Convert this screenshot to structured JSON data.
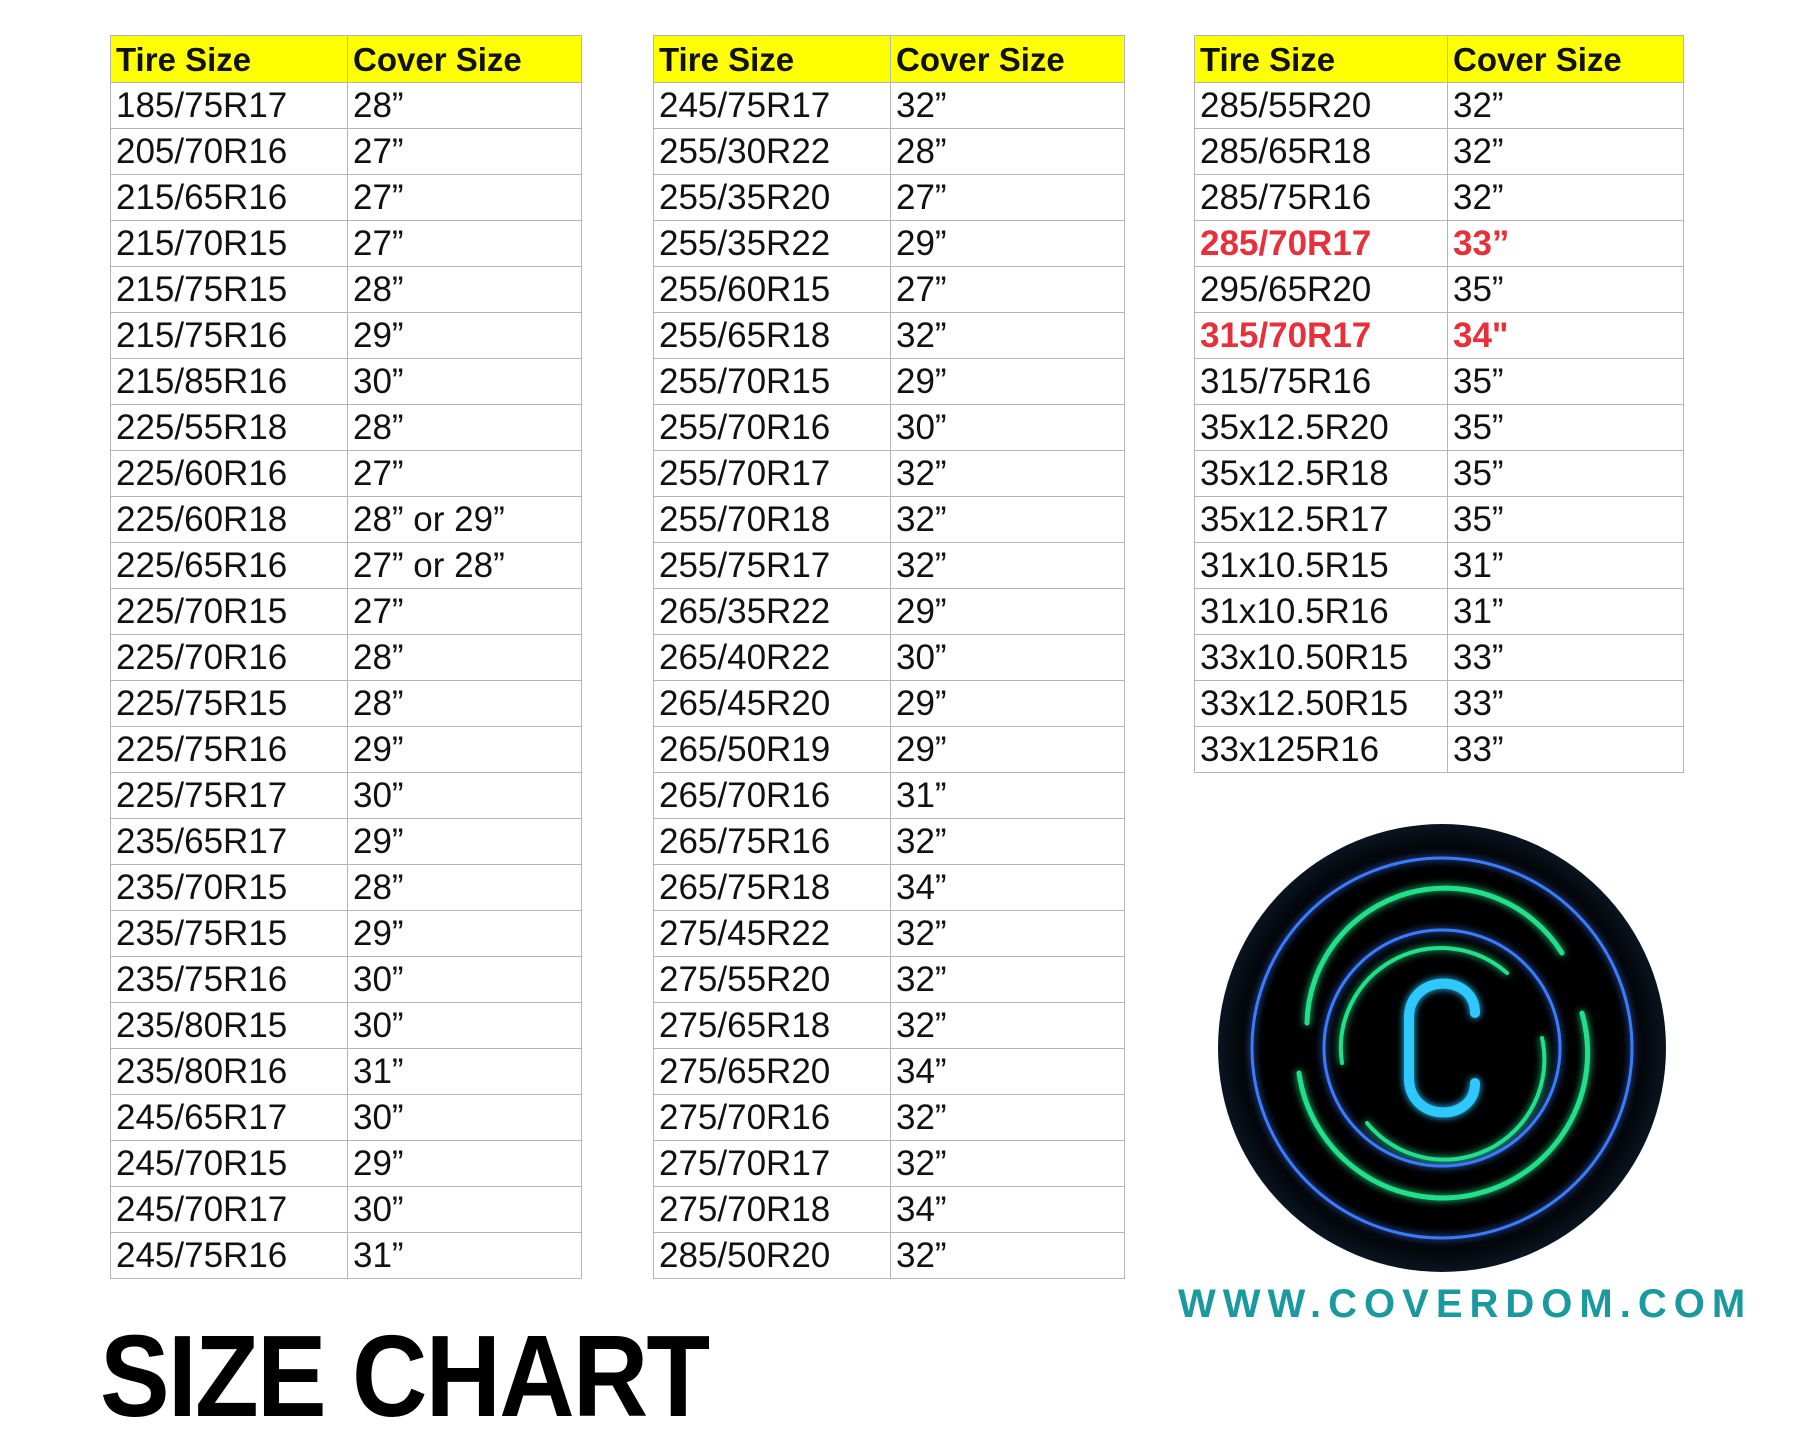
{
  "headers": {
    "tire": "Tire Size",
    "cover": "Cover Size"
  },
  "tables": [
    [
      [
        "185/75R17",
        "28”"
      ],
      [
        "205/70R16",
        "27”"
      ],
      [
        "215/65R16",
        "27”"
      ],
      [
        "215/70R15",
        "27”"
      ],
      [
        "215/75R15",
        "28”"
      ],
      [
        "215/75R16",
        "29”"
      ],
      [
        "215/85R16",
        "30”"
      ],
      [
        "225/55R18",
        "28”"
      ],
      [
        "225/60R16",
        "27”"
      ],
      [
        "225/60R18",
        "28” or 29”"
      ],
      [
        "225/65R16",
        "27” or 28”"
      ],
      [
        "225/70R15",
        "27”"
      ],
      [
        "225/70R16",
        "28”"
      ],
      [
        "225/75R15",
        "28”"
      ],
      [
        "225/75R16",
        "29”"
      ],
      [
        "225/75R17",
        "30”"
      ],
      [
        "235/65R17",
        "29”"
      ],
      [
        "235/70R15",
        "28”"
      ],
      [
        "235/75R15",
        "29”"
      ],
      [
        "235/75R16",
        "30”"
      ],
      [
        "235/80R15",
        "30”"
      ],
      [
        "235/80R16",
        "31”"
      ],
      [
        "245/65R17",
        "30”"
      ],
      [
        "245/70R15",
        "29”"
      ],
      [
        "245/70R17",
        "30”"
      ],
      [
        "245/75R16",
        "31”"
      ]
    ],
    [
      [
        "245/75R17",
        "32”"
      ],
      [
        "255/30R22",
        "28”"
      ],
      [
        "255/35R20",
        "27”"
      ],
      [
        "255/35R22",
        "29”"
      ],
      [
        "255/60R15",
        "27”"
      ],
      [
        "255/65R18",
        "32”"
      ],
      [
        "255/70R15",
        "29”"
      ],
      [
        "255/70R16",
        "30”"
      ],
      [
        "255/70R17",
        "32”"
      ],
      [
        "255/70R18",
        "32”"
      ],
      [
        "255/75R17",
        "32”"
      ],
      [
        "265/35R22",
        "29”"
      ],
      [
        "265/40R22",
        "30”"
      ],
      [
        "265/45R20",
        "29”"
      ],
      [
        "265/50R19",
        "29”"
      ],
      [
        "265/70R16",
        "31”"
      ],
      [
        "265/75R16",
        "32”"
      ],
      [
        "265/75R18",
        "34”"
      ],
      [
        "275/45R22",
        "32”"
      ],
      [
        "275/55R20",
        "32”"
      ],
      [
        "275/65R18",
        "32”"
      ],
      [
        "275/65R20",
        "34”"
      ],
      [
        "275/70R16",
        "32”"
      ],
      [
        "275/70R17",
        "32”"
      ],
      [
        "275/70R18",
        "34”"
      ],
      [
        "285/50R20",
        "32”"
      ]
    ],
    [
      [
        "285/55R20",
        "32”"
      ],
      [
        "285/65R18",
        "32”"
      ],
      [
        "285/75R16",
        "32”"
      ],
      [
        "285/70R17",
        "33”"
      ],
      [
        "295/65R20",
        "35”"
      ],
      [
        "315/70R17",
        "34\""
      ],
      [
        "315/75R16",
        "35”"
      ],
      [
        "35x12.5R20",
        "35”"
      ],
      [
        "35x12.5R18",
        "35”"
      ],
      [
        "35x12.5R17",
        "35”"
      ],
      [
        "31x10.5R15",
        "31”"
      ],
      [
        "31x10.5R16",
        "31”"
      ],
      [
        "33x10.50R15",
        "33”"
      ],
      [
        "33x12.50R15",
        "33”"
      ],
      [
        "33x125R16",
        "33”"
      ]
    ]
  ],
  "highlighted_rows": {
    "2": [
      3,
      5
    ]
  },
  "highlight_color": "#e8303a",
  "header_color": "#ffff00",
  "title": "SIZE CHART",
  "url": "WWW.COVERDOM.COM",
  "logo": {
    "letter": "C",
    "colors": {
      "ring_blue": "#3a7bff",
      "ring_green": "#22e08a",
      "letter": "#2ec8ff"
    }
  }
}
